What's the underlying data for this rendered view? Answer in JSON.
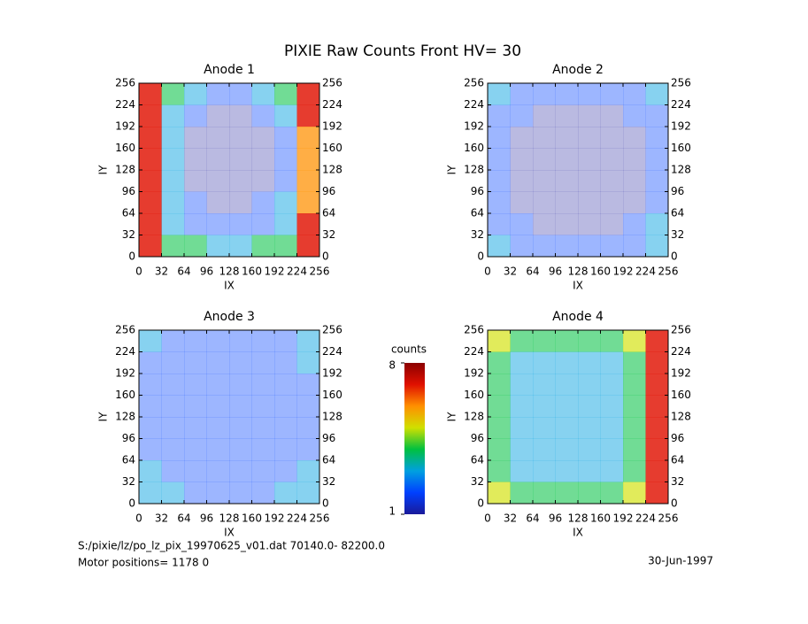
{
  "title": "PIXIE Raw Counts Front HV= 30",
  "footer": {
    "file": "S:/pixie/lz/po_lz_pix_19970625_v01.dat    70140.0- 82200.0",
    "motor": "Motor positions= 1178 0",
    "date": "30-Jun-1997"
  },
  "colorbar": {
    "label": "counts",
    "lim": [
      1,
      8
    ],
    "ticks": [
      1,
      8
    ],
    "colormap": [
      "#1a1a9a",
      "#0040ff",
      "#00a0e0",
      "#00c040",
      "#d0e000",
      "#ff9000",
      "#e01000",
      "#8b0000"
    ]
  },
  "chart_data": [
    {
      "type": "heatmap",
      "title": "Anode 1",
      "xlabel": "IX",
      "ylabel": "IY",
      "xlim": [
        0,
        256
      ],
      "ylim": [
        0,
        256
      ],
      "xticks": [
        0,
        32,
        64,
        96,
        128,
        160,
        192,
        224,
        256
      ],
      "yticks": [
        0,
        32,
        64,
        96,
        128,
        160,
        192,
        224,
        256
      ],
      "values": [
        [
          7,
          4,
          3,
          2,
          2,
          3,
          4,
          7
        ],
        [
          7,
          3,
          2,
          1,
          1,
          2,
          3,
          7
        ],
        [
          7,
          3,
          1,
          1,
          1,
          1,
          2,
          6
        ],
        [
          7,
          3,
          1,
          1,
          1,
          1,
          2,
          6
        ],
        [
          7,
          3,
          1,
          1,
          1,
          1,
          2,
          6
        ],
        [
          7,
          3,
          2,
          1,
          1,
          2,
          3,
          6
        ],
        [
          7,
          3,
          2,
          2,
          2,
          2,
          3,
          7
        ],
        [
          7,
          4,
          4,
          3,
          3,
          4,
          4,
          7
        ]
      ]
    },
    {
      "type": "heatmap",
      "title": "Anode 2",
      "xlabel": "IX",
      "ylabel": "IY",
      "xlim": [
        0,
        256
      ],
      "ylim": [
        0,
        256
      ],
      "xticks": [
        0,
        32,
        64,
        96,
        128,
        160,
        192,
        224,
        256
      ],
      "yticks": [
        0,
        32,
        64,
        96,
        128,
        160,
        192,
        224,
        256
      ],
      "values": [
        [
          3,
          2,
          2,
          2,
          2,
          2,
          2,
          3
        ],
        [
          2,
          2,
          1,
          1,
          1,
          1,
          2,
          2
        ],
        [
          2,
          1,
          1,
          1,
          1,
          1,
          1,
          2
        ],
        [
          2,
          1,
          1,
          1,
          1,
          1,
          1,
          2
        ],
        [
          2,
          1,
          1,
          1,
          1,
          1,
          1,
          2
        ],
        [
          2,
          1,
          1,
          1,
          1,
          1,
          1,
          2
        ],
        [
          2,
          2,
          1,
          1,
          1,
          1,
          2,
          3
        ],
        [
          3,
          2,
          2,
          2,
          2,
          2,
          2,
          3
        ]
      ]
    },
    {
      "type": "heatmap",
      "title": "Anode 3",
      "xlabel": "IX",
      "ylabel": "IY",
      "xlim": [
        0,
        256
      ],
      "ylim": [
        0,
        256
      ],
      "xticks": [
        0,
        32,
        64,
        96,
        128,
        160,
        192,
        224,
        256
      ],
      "yticks": [
        0,
        32,
        64,
        96,
        128,
        160,
        192,
        224,
        256
      ],
      "values": [
        [
          3,
          2,
          2,
          2,
          2,
          2,
          2,
          3
        ],
        [
          2,
          2,
          2,
          2,
          2,
          2,
          2,
          3
        ],
        [
          2,
          2,
          2,
          2,
          2,
          2,
          2,
          2
        ],
        [
          2,
          2,
          2,
          2,
          2,
          2,
          2,
          2
        ],
        [
          2,
          2,
          2,
          2,
          2,
          2,
          2,
          2
        ],
        [
          2,
          2,
          2,
          2,
          2,
          2,
          2,
          2
        ],
        [
          3,
          2,
          2,
          2,
          2,
          2,
          2,
          3
        ],
        [
          3,
          3,
          2,
          2,
          2,
          2,
          3,
          3
        ]
      ]
    },
    {
      "type": "heatmap",
      "title": "Anode 4",
      "xlabel": "IX",
      "ylabel": "IY",
      "xlim": [
        0,
        256
      ],
      "ylim": [
        0,
        256
      ],
      "xticks": [
        0,
        32,
        64,
        96,
        128,
        160,
        192,
        224,
        256
      ],
      "yticks": [
        0,
        32,
        64,
        96,
        128,
        160,
        192,
        224,
        256
      ],
      "values": [
        [
          5,
          4,
          4,
          4,
          4,
          4,
          5,
          7
        ],
        [
          4,
          3,
          3,
          3,
          3,
          3,
          4,
          7
        ],
        [
          4,
          3,
          3,
          3,
          3,
          3,
          4,
          7
        ],
        [
          4,
          3,
          3,
          3,
          3,
          3,
          4,
          7
        ],
        [
          4,
          3,
          3,
          3,
          3,
          3,
          4,
          7
        ],
        [
          4,
          3,
          3,
          3,
          3,
          3,
          4,
          7
        ],
        [
          4,
          3,
          3,
          3,
          3,
          3,
          4,
          7
        ],
        [
          5,
          4,
          4,
          4,
          4,
          4,
          5,
          7
        ]
      ]
    }
  ]
}
